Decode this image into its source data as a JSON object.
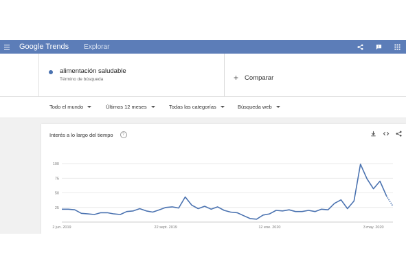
{
  "header": {
    "logo_google": "Google",
    "logo_trends": "Trends",
    "explore_label": "Explorar",
    "icons": [
      "menu-icon",
      "share-icon",
      "feedback-icon",
      "apps-icon"
    ]
  },
  "term": {
    "name": "alimentación saludable",
    "subtitle": "Término de búsqueda",
    "color": "#4a72b0"
  },
  "compare": {
    "label": "Comparar"
  },
  "filters": {
    "region": "Todo el mundo",
    "period": "Últimos 12 meses",
    "category": "Todas las categorías",
    "search_type": "Búsqueda web"
  },
  "card": {
    "title": "Interés a lo largo del tiempo",
    "help_glyph": "?",
    "icons": [
      "download-icon",
      "embed-icon",
      "share-icon"
    ]
  },
  "chart_data": {
    "type": "line",
    "title": "",
    "xlabel": "",
    "ylabel": "",
    "y_ticks": [
      25,
      50,
      75,
      100
    ],
    "ylim": [
      0,
      100
    ],
    "x_tick_labels": [
      {
        "label": "2 jun. 2019",
        "index": 0
      },
      {
        "label": "22 sept. 2019",
        "index": 16
      },
      {
        "label": "12 ene. 2020",
        "index": 32
      },
      {
        "label": "3 may. 2020",
        "index": 48
      }
    ],
    "grid": true,
    "series": [
      {
        "color": "#4a72b0",
        "values": [
          22,
          22,
          21,
          15,
          14,
          13,
          16,
          16,
          14,
          13,
          18,
          19,
          23,
          19,
          17,
          21,
          25,
          26,
          24,
          43,
          29,
          23,
          27,
          22,
          26,
          20,
          17,
          16,
          11,
          6,
          5,
          12,
          14,
          20,
          19,
          21,
          18,
          18,
          20,
          18,
          22,
          21,
          32,
          38,
          23,
          36,
          99,
          74,
          57,
          70,
          45,
          27
        ],
        "partial_last": true
      }
    ]
  }
}
